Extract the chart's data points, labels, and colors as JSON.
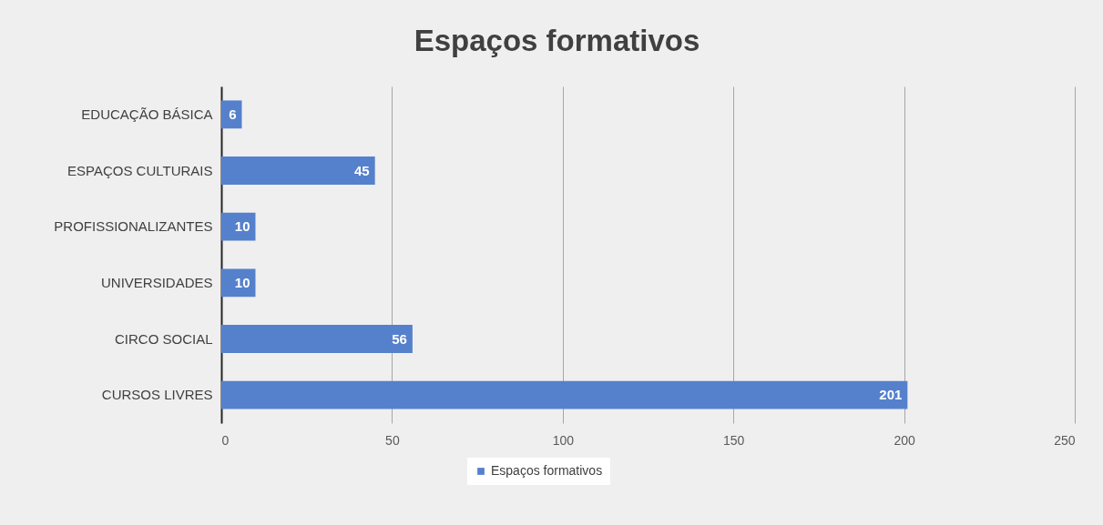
{
  "chart_data": {
    "type": "bar",
    "orientation": "horizontal",
    "title": "Espaços formativos",
    "categories": [
      "EDUCAÇÃO BÁSICA",
      "ESPAÇOS CULTURAIS",
      "PROFISSIONALIZANTES",
      "UNIVERSIDADES",
      "CIRCO SOCIAL",
      "CURSOS LIVRES"
    ],
    "series": [
      {
        "name": "Espaços formativos",
        "color": "#5580cc",
        "values": [
          6,
          45,
          10,
          10,
          56,
          201
        ]
      }
    ],
    "xlim": [
      0,
      250
    ],
    "xticks": [
      0,
      50,
      100,
      150,
      200,
      250
    ],
    "grid": "x",
    "legend": "bottom",
    "data_labels": true
  }
}
